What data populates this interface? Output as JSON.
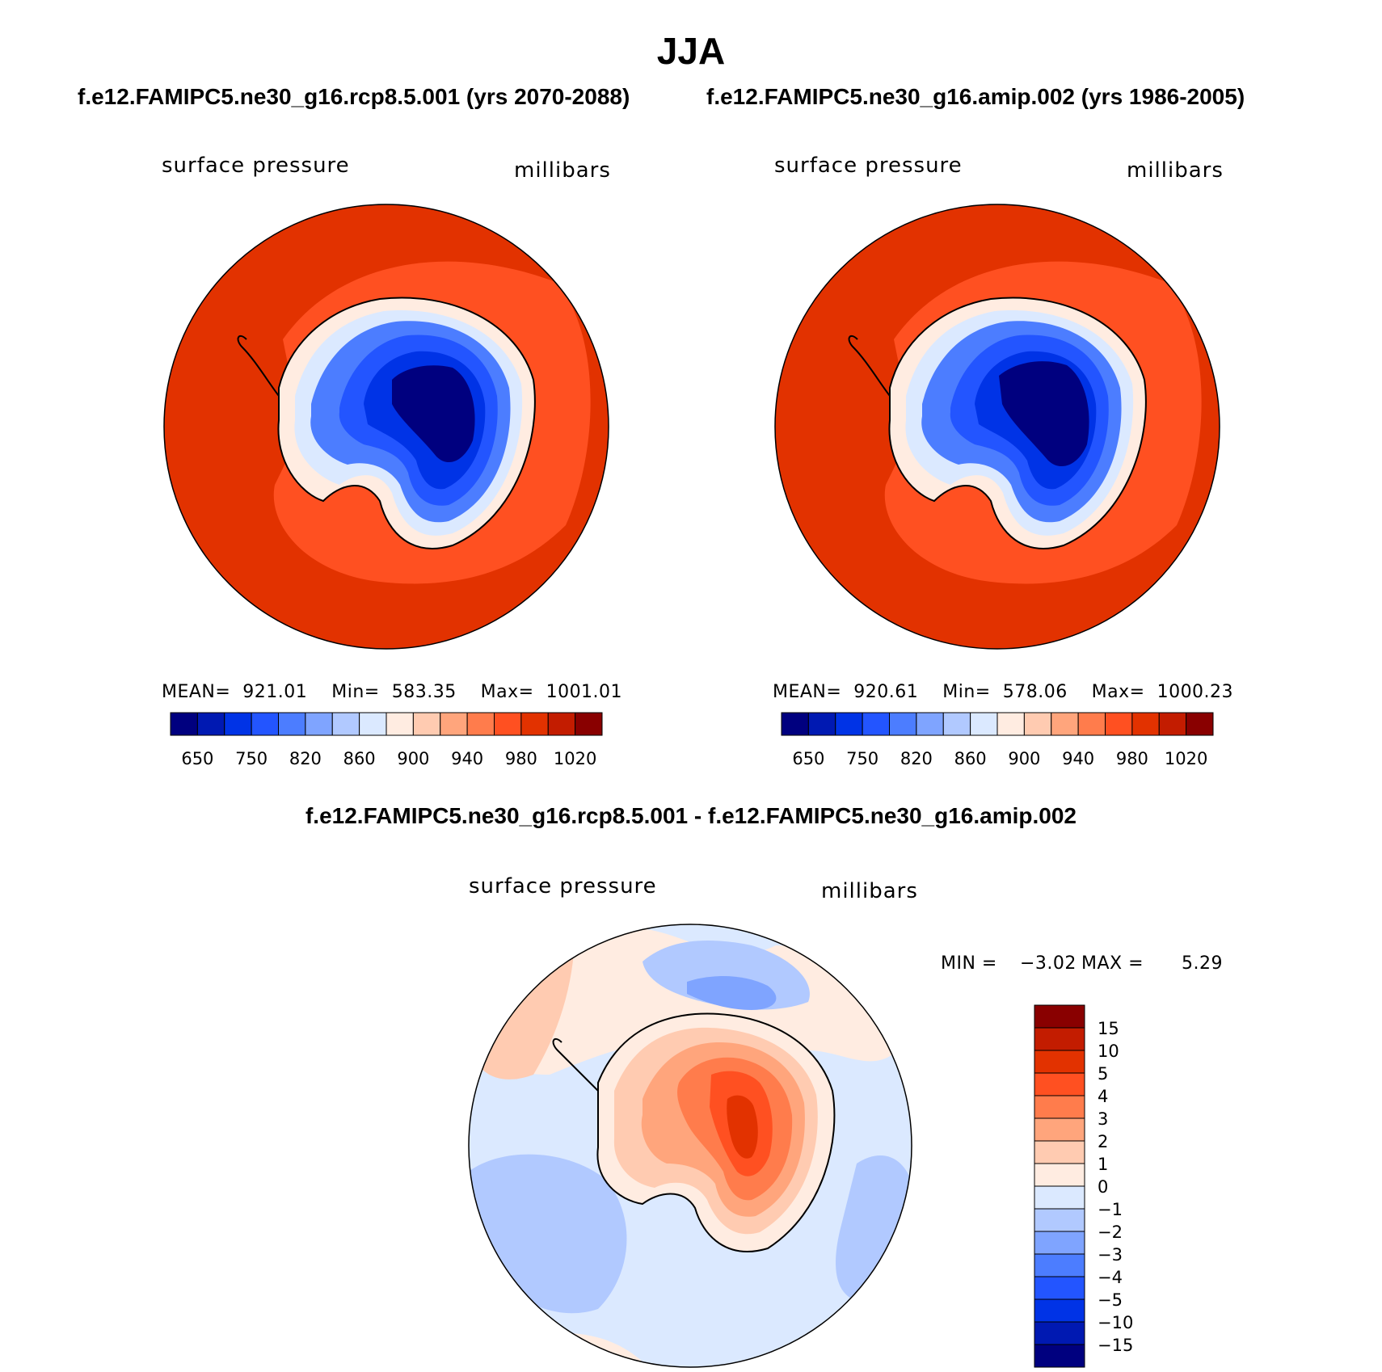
{
  "page_title": "JJA",
  "colors": {
    "seq": [
      "#00007f",
      "#0019b2",
      "#0033e6",
      "#2355ff",
      "#4c7dff",
      "#7fa4ff",
      "#b1c9ff",
      "#dbe9ff",
      "#ffece1",
      "#ffcbb1",
      "#ffa57c",
      "#ff7c4c",
      "#ff5021",
      "#e23200",
      "#c31c00",
      "#890000"
    ],
    "diff": [
      "#00007f",
      "#0019b2",
      "#0033e6",
      "#2355ff",
      "#4c7dff",
      "#7fa4ff",
      "#b1c9ff",
      "#dbe9ff",
      "#ffece1",
      "#ffcbb1",
      "#ffa57c",
      "#ff7c4c",
      "#ff5021",
      "#e23200",
      "#c31c00",
      "#890000"
    ]
  },
  "panels": {
    "left": {
      "case_title": "f.e12.FAMIPC5.ne30_g16.rcp8.5.001 (yrs 2070-2088)",
      "var_label": "surface pressure",
      "units_label": "millibars",
      "stats_text": "MEAN=  921.01    Min=  583.35    Max=  1001.01",
      "tick_labels": [
        "650",
        "750",
        "820",
        "860",
        "900",
        "940",
        "980",
        "1020"
      ]
    },
    "right": {
      "case_title": "f.e12.FAMIPC5.ne30_g16.amip.002 (yrs 1986-2005)",
      "var_label": "surface pressure",
      "units_label": "millibars",
      "stats_text": "MEAN=  920.61    Min=  578.06    Max=  1000.23",
      "tick_labels": [
        "650",
        "750",
        "820",
        "860",
        "900",
        "940",
        "980",
        "1020"
      ]
    },
    "diff": {
      "case_title": "f.e12.FAMIPC5.ne30_g16.rcp8.5.001 - f.e12.FAMIPC5.ne30_g16.amip.002",
      "var_label": "surface pressure",
      "units_label": "millibars",
      "min_label": "MIN =",
      "min_value": "−3.02",
      "max_label": "MAX =",
      "max_value": "5.29",
      "tick_labels": [
        "15",
        "10",
        "5",
        "4",
        "3",
        "2",
        "1",
        "0",
        "−1",
        "−2",
        "−3",
        "−4",
        "−5",
        "−10",
        "−15"
      ]
    }
  },
  "chart_data": [
    {
      "type": "heatmap",
      "title": "f.e12.FAMIPC5.ne30_g16.rcp8.5.001 (yrs 2070-2088)",
      "variable": "surface pressure",
      "units": "millibars",
      "projection": "south polar stereographic",
      "mean": 921.01,
      "min": 583.35,
      "max": 1001.01,
      "contour_levels": [
        650,
        700,
        750,
        800,
        820,
        840,
        860,
        880,
        900,
        920,
        940,
        960,
        980,
        1000,
        1020
      ]
    },
    {
      "type": "heatmap",
      "title": "f.e12.FAMIPC5.ne30_g16.amip.002 (yrs 1986-2005)",
      "variable": "surface pressure",
      "units": "millibars",
      "projection": "south polar stereographic",
      "mean": 920.61,
      "min": 578.06,
      "max": 1000.23,
      "contour_levels": [
        650,
        700,
        750,
        800,
        820,
        840,
        860,
        880,
        900,
        920,
        940,
        960,
        980,
        1000,
        1020
      ]
    },
    {
      "type": "heatmap",
      "title": "f.e12.FAMIPC5.ne30_g16.rcp8.5.001 - f.e12.FAMIPC5.ne30_g16.amip.002",
      "variable": "surface pressure",
      "units": "millibars",
      "projection": "south polar stereographic",
      "min": -3.02,
      "max": 5.29,
      "contour_levels": [
        -15,
        -10,
        -5,
        -4,
        -3,
        -2,
        -1,
        0,
        1,
        2,
        3,
        4,
        5,
        10,
        15
      ]
    }
  ]
}
